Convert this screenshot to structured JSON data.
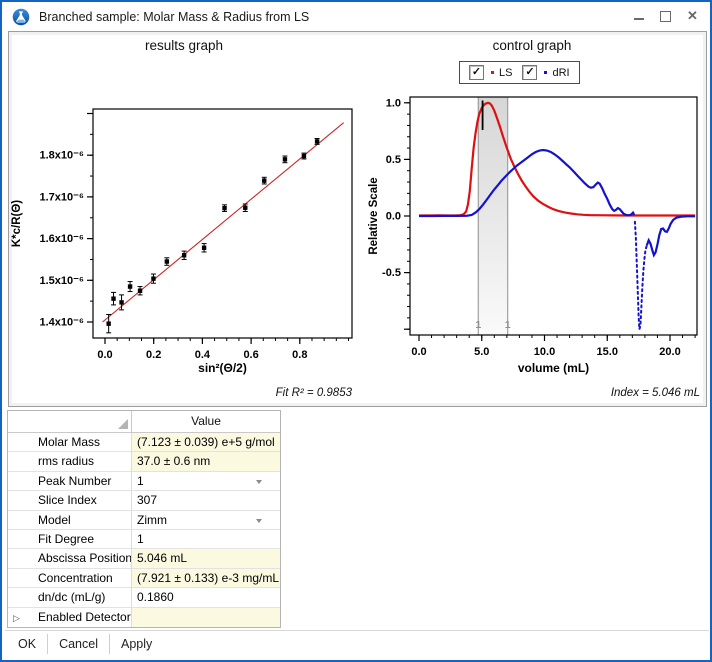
{
  "window": {
    "title": "Branched sample: Molar Mass & Radius from LS",
    "controls": [
      "minimize",
      "maximize",
      "close"
    ]
  },
  "results_graph": {
    "title": "results graph",
    "fit_label": "Fit R² = 0.9853"
  },
  "control_graph": {
    "title": "control graph",
    "index_label": "Index = 5.046 mL",
    "legend": [
      {
        "label": "LS",
        "color": "#dd1111",
        "checked": true
      },
      {
        "label": "dRI",
        "color": "#1313cf",
        "checked": true
      }
    ]
  },
  "chart_data": [
    {
      "type": "scatter",
      "title": "results graph",
      "xlabel": "sin²(Θ/2)",
      "ylabel": "K*c/R(Θ)",
      "y_unit": "x10⁻⁶",
      "xlim": [
        -0.05,
        1.01
      ],
      "ylim_e6": [
        1.36,
        1.91
      ],
      "grid": false,
      "xticks": [
        {
          "v": 0.0,
          "label": "0.0"
        },
        {
          "v": 0.2,
          "label": "0.2"
        },
        {
          "v": 0.4,
          "label": "0.4"
        },
        {
          "v": 0.6,
          "label": "0.6"
        },
        {
          "v": 0.8,
          "label": "0.8"
        }
      ],
      "x_minor_step": 0.05,
      "yticks": [
        {
          "v": 1.4,
          "label": "1.4x10⁻⁶"
        },
        {
          "v": 1.5,
          "label": "1.5x10⁻⁶"
        },
        {
          "v": 1.6,
          "label": "1.6x10⁻⁶"
        },
        {
          "v": 1.7,
          "label": "1.7x10⁻⁶"
        },
        {
          "v": 1.8,
          "label": "1.8x10⁻⁶"
        },
        {
          "v": 1.9,
          "label": ""
        }
      ],
      "y_minor_step": 0.05,
      "point_color": "#000000",
      "points": [
        [
          0.015,
          1.396,
          0.022
        ],
        [
          0.035,
          1.456,
          0.015
        ],
        [
          0.068,
          1.447,
          0.018
        ],
        [
          0.103,
          1.485,
          0.012
        ],
        [
          0.144,
          1.475,
          0.01
        ],
        [
          0.199,
          1.504,
          0.011
        ],
        [
          0.254,
          1.545,
          0.009
        ],
        [
          0.325,
          1.56,
          0.01
        ],
        [
          0.407,
          1.578,
          0.01
        ],
        [
          0.491,
          1.673,
          0.008
        ],
        [
          0.576,
          1.674,
          0.009
        ],
        [
          0.654,
          1.739,
          0.008
        ],
        [
          0.739,
          1.79,
          0.008
        ],
        [
          0.817,
          1.798,
          0.007
        ],
        [
          0.871,
          1.833,
          0.007
        ]
      ],
      "fit_color": "#cc2222",
      "fit_line": [
        [
          -0.01,
          1.4
        ],
        [
          0.98,
          1.878
        ]
      ],
      "fit_r2": 0.9853
    },
    {
      "type": "line",
      "title": "control graph",
      "xlabel": "volume (mL)",
      "ylabel": "Relative Scale",
      "xlim": [
        -0.72,
        22.15
      ],
      "ylim": [
        -1.05,
        1.05
      ],
      "grid": false,
      "xticks": [
        {
          "v": 0,
          "label": "0.0"
        },
        {
          "v": 5,
          "label": "5.0"
        },
        {
          "v": 10,
          "label": "10.0"
        },
        {
          "v": 15,
          "label": "15.0"
        },
        {
          "v": 20,
          "label": "20.0"
        }
      ],
      "x_minor_step": 1,
      "yticks": [
        {
          "v": 1.0,
          "label": "1.0"
        },
        {
          "v": 0.5,
          "label": "0.5"
        },
        {
          "v": 0.0,
          "label": "0.0"
        },
        {
          "v": -0.5,
          "label": "-0.5"
        },
        {
          "v": -1.0,
          "label": ""
        }
      ],
      "y_minor_step": 0.1,
      "peak_region": {
        "from": 4.72,
        "to": 7.07,
        "labels": [
          "1",
          "1"
        ]
      },
      "slice_marker": {
        "x": 5.066,
        "y_from": 0.76,
        "y_to": 1.02
      },
      "index_mL": 5.046,
      "series": [
        {
          "name": "LS",
          "color": "#dd1111",
          "style": "solid",
          "points": [
            [
              0,
              0.004
            ],
            [
              0.8,
              0.004
            ],
            [
              1.6,
              0.005
            ],
            [
              2.4,
              0.004
            ],
            [
              3.0,
              0.005
            ],
            [
              3.3,
              0.007
            ],
            [
              3.55,
              0.015
            ],
            [
              3.75,
              0.04
            ],
            [
              3.9,
              0.1
            ],
            [
              4.05,
              0.22
            ],
            [
              4.2,
              0.42
            ],
            [
              4.35,
              0.6
            ],
            [
              4.5,
              0.73
            ],
            [
              4.65,
              0.83
            ],
            [
              4.8,
              0.9
            ],
            [
              5.0,
              0.955
            ],
            [
              5.2,
              0.985
            ],
            [
              5.35,
              0.995
            ],
            [
              5.5,
              1.0
            ],
            [
              5.65,
              0.995
            ],
            [
              5.8,
              0.975
            ],
            [
              6.0,
              0.93
            ],
            [
              6.2,
              0.87
            ],
            [
              6.45,
              0.79
            ],
            [
              6.7,
              0.7
            ],
            [
              7.0,
              0.6
            ],
            [
              7.3,
              0.51
            ],
            [
              7.6,
              0.435
            ],
            [
              7.9,
              0.37
            ],
            [
              8.2,
              0.31
            ],
            [
              8.5,
              0.26
            ],
            [
              8.8,
              0.215
            ],
            [
              9.1,
              0.175
            ],
            [
              9.5,
              0.135
            ],
            [
              9.9,
              0.105
            ],
            [
              10.3,
              0.08
            ],
            [
              10.7,
              0.06
            ],
            [
              11.1,
              0.045
            ],
            [
              11.6,
              0.032
            ],
            [
              12.1,
              0.022
            ],
            [
              12.6,
              0.015
            ],
            [
              13.1,
              0.011
            ],
            [
              13.6,
              0.008
            ],
            [
              14.1,
              0.007
            ],
            [
              14.8,
              0.006
            ],
            [
              15.5,
              0.005
            ],
            [
              16.5,
              0.004
            ],
            [
              17.5,
              0.004
            ],
            [
              18.5,
              0.004
            ],
            [
              19.5,
              0.004
            ],
            [
              20.5,
              0.004
            ],
            [
              21.5,
              0.004
            ],
            [
              22.0,
              0.004
            ]
          ]
        },
        {
          "name": "dRI",
          "color": "#1313cf",
          "style": "solid",
          "points": [
            [
              0,
              0.0
            ],
            [
              1,
              0.0
            ],
            [
              2,
              0.001
            ],
            [
              3,
              0.001
            ],
            [
              3.8,
              0.002
            ],
            [
              4.2,
              0.01
            ],
            [
              4.5,
              0.03
            ],
            [
              4.8,
              0.06
            ],
            [
              5.1,
              0.1
            ],
            [
              5.4,
              0.145
            ],
            [
              5.7,
              0.19
            ],
            [
              6.0,
              0.235
            ],
            [
              6.3,
              0.275
            ],
            [
              6.6,
              0.315
            ],
            [
              6.9,
              0.35
            ],
            [
              7.2,
              0.385
            ],
            [
              7.5,
              0.415
            ],
            [
              7.8,
              0.445
            ],
            [
              8.1,
              0.47
            ],
            [
              8.4,
              0.495
            ],
            [
              8.7,
              0.52
            ],
            [
              9.0,
              0.545
            ],
            [
              9.3,
              0.565
            ],
            [
              9.6,
              0.578
            ],
            [
              9.9,
              0.583
            ],
            [
              10.2,
              0.578
            ],
            [
              10.5,
              0.565
            ],
            [
              10.8,
              0.545
            ],
            [
              11.1,
              0.52
            ],
            [
              11.4,
              0.49
            ],
            [
              11.7,
              0.46
            ],
            [
              12.0,
              0.43
            ],
            [
              12.3,
              0.395
            ],
            [
              12.6,
              0.36
            ],
            [
              12.9,
              0.325
            ],
            [
              13.2,
              0.29
            ],
            [
              13.5,
              0.26
            ],
            [
              13.7,
              0.25
            ],
            [
              13.9,
              0.255
            ],
            [
              14.1,
              0.28
            ],
            [
              14.25,
              0.295
            ],
            [
              14.4,
              0.285
            ],
            [
              14.6,
              0.245
            ],
            [
              14.8,
              0.195
            ],
            [
              15.0,
              0.15
            ],
            [
              15.2,
              0.1
            ],
            [
              15.4,
              0.06
            ],
            [
              15.55,
              0.045
            ],
            [
              15.7,
              0.055
            ],
            [
              15.85,
              0.07
            ],
            [
              16.0,
              0.06
            ],
            [
              16.15,
              0.04
            ],
            [
              16.3,
              0.02
            ],
            [
              16.5,
              0.01
            ],
            [
              16.7,
              0.006
            ],
            [
              16.9,
              0.012
            ],
            [
              17.05,
              0.03
            ],
            [
              17.15,
              0.01
            ]
          ]
        },
        {
          "name": "dRI-negative-spike",
          "color": "#1313cf",
          "style": "dotted",
          "points": [
            [
              17.2,
              -0.05
            ],
            [
              17.28,
              -0.2
            ],
            [
              17.36,
              -0.45
            ],
            [
              17.44,
              -0.7
            ],
            [
              17.5,
              -0.88
            ],
            [
              17.56,
              -1.0
            ],
            [
              17.64,
              -0.97
            ],
            [
              17.72,
              -0.8
            ],
            [
              17.8,
              -0.62
            ],
            [
              17.88,
              -0.48
            ],
            [
              17.96,
              -0.38
            ],
            [
              18.05,
              -0.3
            ],
            [
              18.15,
              -0.26
            ]
          ]
        },
        {
          "name": "dRI-tail",
          "color": "#1313cf",
          "style": "solid",
          "points": [
            [
              18.15,
              -0.26
            ],
            [
              18.3,
              -0.215
            ],
            [
              18.45,
              -0.245
            ],
            [
              18.6,
              -0.305
            ],
            [
              18.72,
              -0.345
            ],
            [
              18.85,
              -0.32
            ],
            [
              19.0,
              -0.25
            ],
            [
              19.15,
              -0.17
            ],
            [
              19.3,
              -0.115
            ],
            [
              19.45,
              -0.11
            ],
            [
              19.6,
              -0.135
            ],
            [
              19.75,
              -0.14
            ],
            [
              19.9,
              -0.11
            ],
            [
              20.05,
              -0.07
            ],
            [
              20.25,
              -0.035
            ],
            [
              20.5,
              -0.015
            ],
            [
              20.9,
              -0.006
            ],
            [
              21.4,
              -0.003
            ],
            [
              22.0,
              -0.003
            ]
          ]
        }
      ]
    }
  ],
  "table": {
    "value_header": "Value",
    "rows": [
      {
        "label": "Molar Mass",
        "value": "(7.123 ± 0.039) e+5 g/mol",
        "highlight": true,
        "dropdown": false,
        "expandable": false
      },
      {
        "label": "rms radius",
        "value": "37.0 ± 0.6 nm",
        "highlight": true,
        "dropdown": false,
        "expandable": false
      },
      {
        "label": "Peak Number",
        "value": "1",
        "highlight": false,
        "dropdown": true,
        "expandable": false
      },
      {
        "label": "Slice Index",
        "value": "307",
        "highlight": false,
        "dropdown": false,
        "expandable": false
      },
      {
        "label": "Model",
        "value": "Zimm",
        "highlight": false,
        "dropdown": true,
        "expandable": false
      },
      {
        "label": "Fit Degree",
        "value": "1",
        "highlight": false,
        "dropdown": false,
        "expandable": false
      },
      {
        "label": "Abscissa Position",
        "value": "5.046 mL",
        "highlight": true,
        "dropdown": false,
        "expandable": false
      },
      {
        "label": "Concentration",
        "value": "(7.921 ± 0.133) e-3 mg/mL",
        "highlight": true,
        "dropdown": false,
        "expandable": false
      },
      {
        "label": "dn/dc (mL/g)",
        "value": "0.1860",
        "highlight": false,
        "dropdown": false,
        "expandable": false
      },
      {
        "label": "Enabled Detectors",
        "value": "",
        "highlight": true,
        "dropdown": false,
        "expandable": true
      }
    ]
  },
  "actions": [
    "OK",
    "Cancel",
    "Apply"
  ]
}
